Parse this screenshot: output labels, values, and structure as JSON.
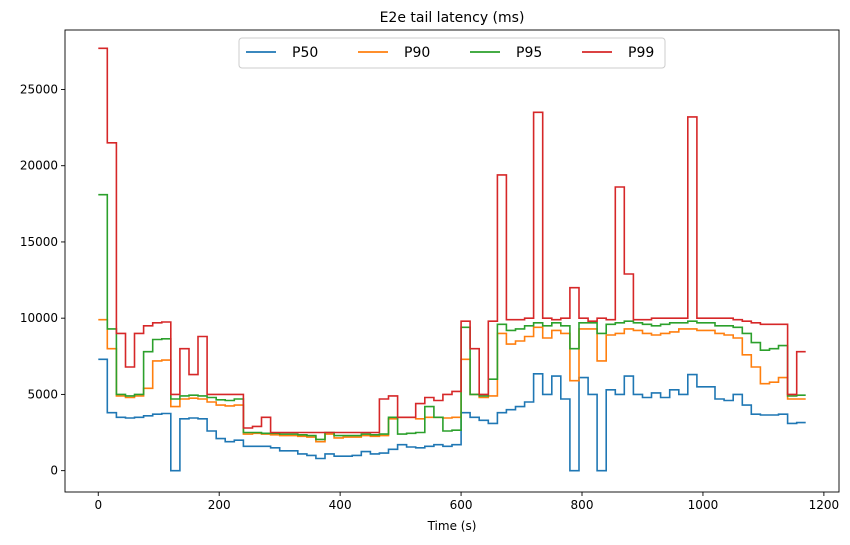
{
  "chart_data": {
    "type": "line",
    "title": "E2e tail latency (ms)",
    "xlabel": "Time (s)",
    "ylabel": "",
    "xlim": [
      -55,
      1225
    ],
    "ylim": [
      -1400,
      28900
    ],
    "xticks": [
      0,
      200,
      400,
      600,
      800,
      1000,
      1200
    ],
    "yticks": [
      0,
      5000,
      10000,
      15000,
      20000,
      25000
    ],
    "grid": false,
    "legend": "top-center",
    "step_width": 15,
    "series": [
      {
        "name": "P50",
        "color": "#1f77b4",
        "points": [
          [
            0,
            7300
          ],
          [
            15,
            3800
          ],
          [
            30,
            3500
          ],
          [
            45,
            3450
          ],
          [
            60,
            3500
          ],
          [
            75,
            3600
          ],
          [
            90,
            3700
          ],
          [
            105,
            3750
          ],
          [
            120,
            0
          ],
          [
            135,
            3400
          ],
          [
            150,
            3450
          ],
          [
            165,
            3400
          ],
          [
            180,
            2600
          ],
          [
            195,
            2100
          ],
          [
            210,
            1900
          ],
          [
            225,
            2000
          ],
          [
            240,
            1600
          ],
          [
            255,
            1600
          ],
          [
            270,
            1600
          ],
          [
            285,
            1500
          ],
          [
            300,
            1300
          ],
          [
            315,
            1300
          ],
          [
            330,
            1100
          ],
          [
            345,
            1000
          ],
          [
            360,
            800
          ],
          [
            375,
            1100
          ],
          [
            390,
            950
          ],
          [
            405,
            950
          ],
          [
            420,
            1000
          ],
          [
            435,
            1250
          ],
          [
            450,
            1100
          ],
          [
            465,
            1150
          ],
          [
            480,
            1400
          ],
          [
            495,
            1700
          ],
          [
            510,
            1550
          ],
          [
            525,
            1500
          ],
          [
            540,
            1600
          ],
          [
            555,
            1700
          ],
          [
            570,
            1600
          ],
          [
            585,
            1700
          ],
          [
            600,
            3800
          ],
          [
            615,
            3500
          ],
          [
            630,
            3300
          ],
          [
            645,
            3100
          ],
          [
            660,
            3800
          ],
          [
            675,
            4000
          ],
          [
            690,
            4200
          ],
          [
            705,
            4500
          ],
          [
            720,
            6350
          ],
          [
            735,
            5000
          ],
          [
            750,
            6200
          ],
          [
            765,
            4700
          ],
          [
            780,
            0
          ],
          [
            795,
            6100
          ],
          [
            810,
            5000
          ],
          [
            825,
            0
          ],
          [
            840,
            5300
          ],
          [
            855,
            5000
          ],
          [
            870,
            6200
          ],
          [
            885,
            5000
          ],
          [
            900,
            4800
          ],
          [
            915,
            5100
          ],
          [
            930,
            4800
          ],
          [
            945,
            5300
          ],
          [
            960,
            5000
          ],
          [
            975,
            6300
          ],
          [
            990,
            5500
          ],
          [
            1005,
            5500
          ],
          [
            1020,
            4700
          ],
          [
            1035,
            4600
          ],
          [
            1050,
            5000
          ],
          [
            1065,
            4300
          ],
          [
            1080,
            3700
          ],
          [
            1095,
            3650
          ],
          [
            1110,
            3650
          ],
          [
            1125,
            3700
          ],
          [
            1140,
            3100
          ],
          [
            1155,
            3150
          ],
          [
            1170,
            3150
          ]
        ]
      },
      {
        "name": "P90",
        "color": "#ff7f0e",
        "points": [
          [
            0,
            9900
          ],
          [
            15,
            8000
          ],
          [
            30,
            4900
          ],
          [
            45,
            4800
          ],
          [
            60,
            4900
          ],
          [
            75,
            5400
          ],
          [
            90,
            7200
          ],
          [
            105,
            7250
          ],
          [
            120,
            4200
          ],
          [
            135,
            4700
          ],
          [
            150,
            4750
          ],
          [
            165,
            4700
          ],
          [
            180,
            4500
          ],
          [
            195,
            4300
          ],
          [
            210,
            4250
          ],
          [
            225,
            4300
          ],
          [
            240,
            2400
          ],
          [
            255,
            2450
          ],
          [
            270,
            2400
          ],
          [
            285,
            2350
          ],
          [
            300,
            2300
          ],
          [
            315,
            2300
          ],
          [
            330,
            2250
          ],
          [
            345,
            2200
          ],
          [
            360,
            1900
          ],
          [
            375,
            2400
          ],
          [
            390,
            2150
          ],
          [
            405,
            2200
          ],
          [
            420,
            2200
          ],
          [
            435,
            2300
          ],
          [
            450,
            2250
          ],
          [
            465,
            2300
          ],
          [
            480,
            3400
          ],
          [
            495,
            3500
          ],
          [
            510,
            3500
          ],
          [
            525,
            3400
          ],
          [
            540,
            3500
          ],
          [
            555,
            3500
          ],
          [
            570,
            3450
          ],
          [
            585,
            3500
          ],
          [
            600,
            7300
          ],
          [
            615,
            5000
          ],
          [
            630,
            4800
          ],
          [
            645,
            4900
          ],
          [
            660,
            9000
          ],
          [
            675,
            8300
          ],
          [
            690,
            8500
          ],
          [
            705,
            8800
          ],
          [
            720,
            9400
          ],
          [
            735,
            8700
          ],
          [
            750,
            9200
          ],
          [
            765,
            9000
          ],
          [
            780,
            5900
          ],
          [
            795,
            9300
          ],
          [
            810,
            9300
          ],
          [
            825,
            7200
          ],
          [
            840,
            8900
          ],
          [
            855,
            9000
          ],
          [
            870,
            9300
          ],
          [
            885,
            9200
          ],
          [
            900,
            9000
          ],
          [
            915,
            8900
          ],
          [
            930,
            9000
          ],
          [
            945,
            9100
          ],
          [
            960,
            9300
          ],
          [
            975,
            9300
          ],
          [
            990,
            9200
          ],
          [
            1005,
            9200
          ],
          [
            1020,
            9000
          ],
          [
            1035,
            8900
          ],
          [
            1050,
            8700
          ],
          [
            1065,
            7600
          ],
          [
            1080,
            6800
          ],
          [
            1095,
            5700
          ],
          [
            1110,
            5800
          ],
          [
            1125,
            6100
          ],
          [
            1140,
            4700
          ],
          [
            1155,
            4700
          ],
          [
            1170,
            4700
          ]
        ]
      },
      {
        "name": "P95",
        "color": "#2ca02c",
        "points": [
          [
            0,
            18100
          ],
          [
            15,
            9300
          ],
          [
            30,
            5000
          ],
          [
            45,
            4900
          ],
          [
            60,
            5000
          ],
          [
            75,
            7800
          ],
          [
            90,
            8600
          ],
          [
            105,
            8650
          ],
          [
            120,
            4700
          ],
          [
            135,
            4900
          ],
          [
            150,
            4950
          ],
          [
            165,
            4900
          ],
          [
            180,
            4800
          ],
          [
            195,
            4650
          ],
          [
            210,
            4600
          ],
          [
            225,
            4700
          ],
          [
            240,
            2500
          ],
          [
            255,
            2500
          ],
          [
            270,
            2450
          ],
          [
            285,
            2450
          ],
          [
            300,
            2400
          ],
          [
            315,
            2400
          ],
          [
            330,
            2350
          ],
          [
            345,
            2300
          ],
          [
            360,
            2050
          ],
          [
            375,
            2500
          ],
          [
            390,
            2300
          ],
          [
            405,
            2300
          ],
          [
            420,
            2300
          ],
          [
            435,
            2400
          ],
          [
            450,
            2350
          ],
          [
            465,
            2400
          ],
          [
            480,
            3500
          ],
          [
            495,
            2400
          ],
          [
            510,
            2450
          ],
          [
            525,
            2500
          ],
          [
            540,
            4200
          ],
          [
            555,
            3500
          ],
          [
            570,
            2600
          ],
          [
            585,
            2650
          ],
          [
            600,
            9400
          ],
          [
            615,
            5000
          ],
          [
            630,
            4900
          ],
          [
            645,
            6000
          ],
          [
            660,
            9600
          ],
          [
            675,
            9200
          ],
          [
            690,
            9300
          ],
          [
            705,
            9500
          ],
          [
            720,
            9700
          ],
          [
            735,
            9500
          ],
          [
            750,
            9700
          ],
          [
            765,
            9500
          ],
          [
            780,
            8000
          ],
          [
            795,
            9700
          ],
          [
            810,
            9700
          ],
          [
            825,
            9000
          ],
          [
            840,
            9600
          ],
          [
            855,
            9700
          ],
          [
            870,
            9800
          ],
          [
            885,
            9700
          ],
          [
            900,
            9600
          ],
          [
            915,
            9500
          ],
          [
            930,
            9600
          ],
          [
            945,
            9700
          ],
          [
            960,
            9700
          ],
          [
            975,
            9800
          ],
          [
            990,
            9700
          ],
          [
            1005,
            9700
          ],
          [
            1020,
            9500
          ],
          [
            1035,
            9500
          ],
          [
            1050,
            9400
          ],
          [
            1065,
            9000
          ],
          [
            1080,
            8400
          ],
          [
            1095,
            7900
          ],
          [
            1110,
            8000
          ],
          [
            1125,
            8200
          ],
          [
            1140,
            4900
          ],
          [
            1155,
            4950
          ],
          [
            1170,
            4950
          ]
        ]
      },
      {
        "name": "P99",
        "color": "#d62728",
        "points": [
          [
            0,
            27700
          ],
          [
            15,
            21500
          ],
          [
            30,
            9000
          ],
          [
            45,
            6800
          ],
          [
            60,
            9000
          ],
          [
            75,
            9500
          ],
          [
            90,
            9700
          ],
          [
            105,
            9750
          ],
          [
            120,
            5000
          ],
          [
            135,
            8000
          ],
          [
            150,
            6300
          ],
          [
            165,
            8800
          ],
          [
            180,
            5000
          ],
          [
            195,
            5000
          ],
          [
            210,
            5000
          ],
          [
            225,
            5000
          ],
          [
            240,
            2800
          ],
          [
            255,
            2900
          ],
          [
            270,
            3500
          ],
          [
            285,
            2500
          ],
          [
            300,
            2500
          ],
          [
            315,
            2500
          ],
          [
            330,
            2500
          ],
          [
            345,
            2500
          ],
          [
            360,
            2500
          ],
          [
            375,
            2500
          ],
          [
            390,
            2500
          ],
          [
            405,
            2500
          ],
          [
            420,
            2500
          ],
          [
            435,
            2500
          ],
          [
            450,
            2500
          ],
          [
            465,
            4700
          ],
          [
            480,
            4900
          ],
          [
            495,
            3500
          ],
          [
            510,
            3500
          ],
          [
            525,
            4400
          ],
          [
            540,
            4800
          ],
          [
            555,
            4600
          ],
          [
            570,
            5000
          ],
          [
            585,
            5200
          ],
          [
            600,
            9800
          ],
          [
            615,
            8000
          ],
          [
            630,
            5000
          ],
          [
            645,
            9800
          ],
          [
            660,
            19400
          ],
          [
            675,
            9900
          ],
          [
            690,
            9900
          ],
          [
            705,
            10000
          ],
          [
            720,
            23500
          ],
          [
            735,
            10000
          ],
          [
            750,
            9900
          ],
          [
            765,
            10000
          ],
          [
            780,
            12000
          ],
          [
            795,
            10000
          ],
          [
            810,
            9800
          ],
          [
            825,
            10000
          ],
          [
            840,
            9900
          ],
          [
            855,
            18600
          ],
          [
            870,
            12900
          ],
          [
            885,
            9900
          ],
          [
            900,
            9900
          ],
          [
            915,
            10000
          ],
          [
            930,
            10000
          ],
          [
            945,
            10000
          ],
          [
            960,
            10000
          ],
          [
            975,
            23200
          ],
          [
            990,
            10000
          ],
          [
            1005,
            10000
          ],
          [
            1020,
            10000
          ],
          [
            1035,
            10000
          ],
          [
            1050,
            9900
          ],
          [
            1065,
            9800
          ],
          [
            1080,
            9700
          ],
          [
            1095,
            9600
          ],
          [
            1110,
            9600
          ],
          [
            1125,
            9600
          ],
          [
            1140,
            5000
          ],
          [
            1155,
            7800
          ],
          [
            1170,
            7800
          ]
        ]
      }
    ]
  }
}
